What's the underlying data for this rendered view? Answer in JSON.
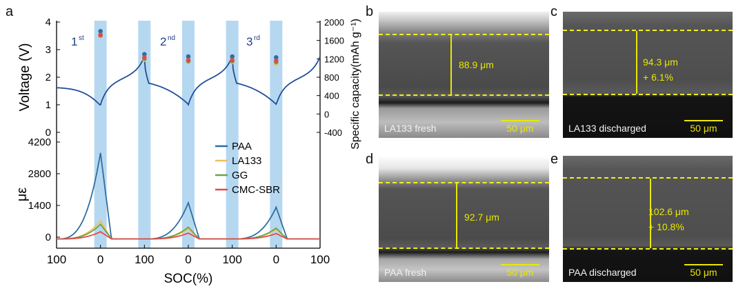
{
  "panel_labels": {
    "a": "a",
    "b": "b",
    "c": "c",
    "d": "d",
    "e": "e"
  },
  "colors": {
    "PAA": "#2e6da4",
    "LA133": "#f2bd5a",
    "GG": "#6fa04a",
    "CMC-SBR": "#e04a4a",
    "band": "#b5d8f0",
    "voltage": "#1f4e9a",
    "guide": "#f2f21a",
    "measure": "#e8e800"
  },
  "chart_data": {
    "type": "line",
    "xlabel": "SOC(%)",
    "x_ticks": [
      "100",
      "0",
      "100",
      "0",
      "100",
      "0",
      "100"
    ],
    "cycle_labels": [
      {
        "n": "1",
        "sup": "st"
      },
      {
        "n": "2",
        "sup": "nd"
      },
      {
        "n": "3",
        "sup": "rd"
      }
    ],
    "top": {
      "ylabel": "Voltage (V)",
      "ylim": [
        0,
        4
      ],
      "yticks": [
        "0",
        "1",
        "2",
        "3",
        "4"
      ],
      "y2label": "Specific capacity(mAh g⁻¹)",
      "y2lim": [
        -400,
        2000
      ],
      "y2ticks": [
        "-400",
        "0",
        "400",
        "800",
        "1200",
        "1600",
        "2000"
      ],
      "capacity_points": [
        {
          "series": "PAA",
          "values": [
            1800,
            1300,
            1250,
            1250,
            1230
          ]
        },
        {
          "series": "LA133",
          "values": [
            1700,
            1180,
            1140,
            1130,
            1100
          ]
        },
        {
          "series": "GG",
          "values": [
            1710,
            1200,
            1150,
            1150,
            1130
          ]
        },
        {
          "series": "CMC-SBR",
          "values": [
            1720,
            1230,
            1170,
            1170,
            1160
          ]
        }
      ]
    },
    "bottom": {
      "ylabel": "με",
      "ylim": [
        0,
        4200
      ],
      "yticks": [
        "0",
        "1400",
        "2800",
        "4200"
      ],
      "legend": [
        "PAA",
        "LA133",
        "GG",
        "CMC-SBR"
      ],
      "legend_position": "right"
    }
  },
  "sem_panels": {
    "b": {
      "caption": "LA133 fresh",
      "scale": "50 μm",
      "thickness": "88.9 μm",
      "change": ""
    },
    "c": {
      "caption": "LA133  discharged",
      "scale": "50 μm",
      "thickness": "94.3 μm",
      "change": "+ 6.1%"
    },
    "d": {
      "caption": "PAA fresh",
      "scale": "50 μm",
      "thickness": "92.7 μm",
      "change": ""
    },
    "e": {
      "caption": "PAA  discharged",
      "scale": "50 μm",
      "thickness": "102.6 μm",
      "change": "+ 10.8%"
    }
  }
}
